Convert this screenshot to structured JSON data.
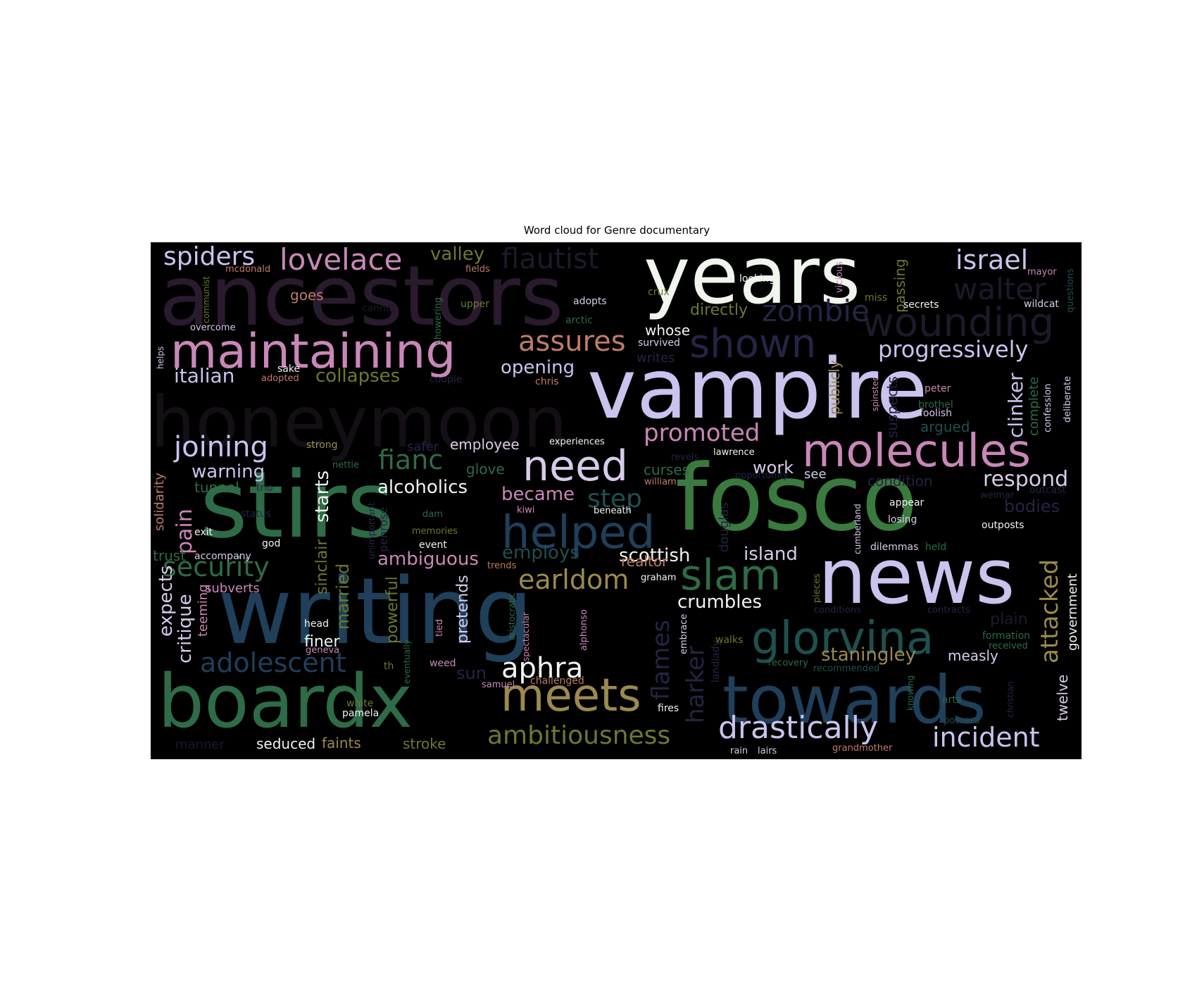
{
  "figure": {
    "title": "Word cloud for Genre documentary"
  },
  "chart_data": {
    "type": "wordcloud",
    "title": "Word cloud for Genre documentary",
    "background": "#000000",
    "palette": [
      "#2a1a2e",
      "#1f3f5a",
      "#2e6b47",
      "#c9c3ee",
      "#c987b8",
      "#f0f5ee",
      "#9c8a4d",
      "#d8cbea",
      "#c07b67",
      "#6b7a2e"
    ],
    "words": [
      {
        "text": "ancestors",
        "color": "#2a1a2e"
      },
      {
        "text": "years",
        "color": "#f0f5ee"
      },
      {
        "text": "vampire",
        "color": "#c9c3ee"
      },
      {
        "text": "honeymoon",
        "color": "#140f14"
      },
      {
        "text": "stirs",
        "color": "#2e6b47"
      },
      {
        "text": "fosco",
        "color": "#3a7a3e"
      },
      {
        "text": "writing",
        "color": "#1f3f5a"
      },
      {
        "text": "news",
        "color": "#c9c3ee"
      },
      {
        "text": "boardx",
        "color": "#2e6b47"
      },
      {
        "text": "towards",
        "color": "#1f3f5a"
      },
      {
        "text": "maintaining",
        "color": "#c987b8"
      },
      {
        "text": "molecules",
        "color": "#c987b8"
      },
      {
        "text": "helped",
        "color": "#1f3f5a"
      },
      {
        "text": "glorvina",
        "color": "#1f5050"
      },
      {
        "text": "need",
        "color": "#d8cbea"
      },
      {
        "text": "meets",
        "color": "#9c8a4d"
      },
      {
        "text": "slam",
        "color": "#2e6b47"
      },
      {
        "text": "shown",
        "color": "#252445"
      },
      {
        "text": "wounding",
        "color": "#1c1a2a"
      },
      {
        "text": "lovelace",
        "color": "#c987b8"
      },
      {
        "text": "spiders",
        "color": "#c9c3ee"
      },
      {
        "text": "israel",
        "color": "#c9c3ee"
      },
      {
        "text": "zombie",
        "color": "#252445"
      },
      {
        "text": "walter",
        "color": "#1c1a2a"
      },
      {
        "text": "flautist",
        "color": "#1c1a2a"
      },
      {
        "text": "assures",
        "color": "#c07b67"
      },
      {
        "text": "progressively",
        "color": "#c9c3ee"
      },
      {
        "text": "promoted",
        "color": "#c987b8"
      },
      {
        "text": "fianc",
        "color": "#2e6b47"
      },
      {
        "text": "joining",
        "color": "#c9c3ee"
      },
      {
        "text": "security",
        "color": "#2e6b47"
      },
      {
        "text": "adolescent",
        "color": "#1f3f5a"
      },
      {
        "text": "ambitiousness",
        "color": "#6b7a2e"
      },
      {
        "text": "drastically",
        "color": "#c9c3ee"
      },
      {
        "text": "incident",
        "color": "#c9c3ee"
      },
      {
        "text": "earldom",
        "color": "#9c8a4d"
      },
      {
        "text": "aphra",
        "color": "#f0f5ee"
      },
      {
        "text": "step",
        "color": "#1f5050"
      },
      {
        "text": "respond",
        "color": "#d8cbea"
      },
      {
        "text": "staningley",
        "color": "#9c8a4d"
      },
      {
        "text": "attacked",
        "color": "#9c8a4d"
      },
      {
        "text": "flames",
        "color": "#252445"
      },
      {
        "text": "harker",
        "color": "#252445"
      },
      {
        "text": "italian",
        "color": "#c9c3ee"
      },
      {
        "text": "collapses",
        "color": "#6b7a2e"
      },
      {
        "text": "opening",
        "color": "#c9c3ee"
      },
      {
        "text": "valley",
        "color": "#6b7a2e"
      },
      {
        "text": "directly",
        "color": "#6b7a2e"
      },
      {
        "text": "alcoholics",
        "color": "#f0f5ee"
      },
      {
        "text": "warning",
        "color": "#c9c3ee"
      },
      {
        "text": "scottish",
        "color": "#f0f5ee"
      },
      {
        "text": "island",
        "color": "#d8cbea"
      },
      {
        "text": "crumbles",
        "color": "#f0f5ee"
      },
      {
        "text": "ambiguous",
        "color": "#c987b8"
      },
      {
        "text": "employs",
        "color": "#1f5050"
      },
      {
        "text": "became",
        "color": "#c987b8"
      },
      {
        "text": "work",
        "color": "#d8cbea"
      },
      {
        "text": "clinker",
        "color": "#c9c3ee"
      },
      {
        "text": "pain",
        "color": "#c987b8"
      },
      {
        "text": "starts",
        "color": "#f0f5ee"
      },
      {
        "text": "expects",
        "color": "#d8cbea"
      },
      {
        "text": "critique",
        "color": "#d8cbea"
      },
      {
        "text": "married",
        "color": "#6b7a2e"
      },
      {
        "text": "sinclair",
        "color": "#6b7a2e"
      },
      {
        "text": "pretends",
        "color": "#d8cbea"
      },
      {
        "text": "powerful",
        "color": "#6b7a2e"
      },
      {
        "text": "finer",
        "color": "#f0f5ee"
      },
      {
        "text": "sun",
        "color": "#252445"
      },
      {
        "text": "measly",
        "color": "#d8cbea"
      },
      {
        "text": "bodies",
        "color": "#252445"
      },
      {
        "text": "goes",
        "color": "#c07b67"
      },
      {
        "text": "whose",
        "color": "#f0f5ee"
      },
      {
        "text": "publicly",
        "color": "#9c8a4d"
      },
      {
        "text": "suspects",
        "color": "#252445"
      },
      {
        "text": "passing",
        "color": "#6b7a2e"
      },
      {
        "text": "argued",
        "color": "#1f5050"
      },
      {
        "text": "government",
        "color": "#f0f5ee"
      },
      {
        "text": "twelve",
        "color": "#d8cbea"
      },
      {
        "text": "seduced",
        "color": "#f0f5ee"
      },
      {
        "text": "faints",
        "color": "#9c8a4d"
      },
      {
        "text": "stroke",
        "color": "#6b7a2e"
      },
      {
        "text": "employee",
        "color": "#d8cbea"
      },
      {
        "text": "subverts",
        "color": "#c987b8"
      },
      {
        "text": "teeming",
        "color": "#c987b8"
      },
      {
        "text": "tunnel",
        "color": "#2e6b47"
      },
      {
        "text": "trust",
        "color": "#2e6b47"
      },
      {
        "text": "glove",
        "color": "#2e6b47"
      },
      {
        "text": "curses",
        "color": "#2e6b47"
      },
      {
        "text": "realtor",
        "color": "#c07b67"
      },
      {
        "text": "condition",
        "color": "#252445"
      },
      {
        "text": "solidarity",
        "color": "#c07b67"
      },
      {
        "text": "complete",
        "color": "#2e6b47"
      },
      {
        "text": "plain",
        "color": "#1c1a2a"
      },
      {
        "text": "manner",
        "color": "#1c1a2a"
      },
      {
        "text": "mcdonald",
        "color": "#c07b67"
      },
      {
        "text": "fields",
        "color": "#c07b67"
      },
      {
        "text": "mayor",
        "color": "#c987b8"
      },
      {
        "text": "communist",
        "color": "#6b7a2e"
      },
      {
        "text": "cannot",
        "color": "#1c1a2a"
      },
      {
        "text": "upper",
        "color": "#6b7a2e"
      },
      {
        "text": "adopts",
        "color": "#d8cbea"
      },
      {
        "text": "crux",
        "color": "#6b7a2e"
      },
      {
        "text": "looking",
        "color": "#f0f5ee"
      },
      {
        "text": "vicious",
        "color": "#c987b8"
      },
      {
        "text": "miss",
        "color": "#6b7a2e"
      },
      {
        "text": "secrets",
        "color": "#f0f5ee"
      },
      {
        "text": "wildcat",
        "color": "#d8cbea"
      },
      {
        "text": "questions",
        "color": "#1f5050"
      },
      {
        "text": "overcome",
        "color": "#d8cbea"
      },
      {
        "text": "arctic",
        "color": "#2e6b47"
      },
      {
        "text": "showering",
        "color": "#2e6b47"
      },
      {
        "text": "survived",
        "color": "#d8cbea"
      },
      {
        "text": "writes",
        "color": "#252445"
      },
      {
        "text": "sake",
        "color": "#f0f5ee"
      },
      {
        "text": "adopted",
        "color": "#c07b67"
      },
      {
        "text": "couple",
        "color": "#252445"
      },
      {
        "text": "chris",
        "color": "#c07b67"
      },
      {
        "text": "helps",
        "color": "#d8cbea"
      },
      {
        "text": "spinster",
        "color": "#c987b8"
      },
      {
        "text": "brothel",
        "color": "#2e6b47"
      },
      {
        "text": "peter",
        "color": "#c987b8"
      },
      {
        "text": "foolish",
        "color": "#d8cbea"
      },
      {
        "text": "confession",
        "color": "#d8cbea"
      },
      {
        "text": "deliberate",
        "color": "#d8cbea"
      },
      {
        "text": "strong",
        "color": "#9c8a4d"
      },
      {
        "text": "nettie",
        "color": "#2e6b47"
      },
      {
        "text": "safer",
        "color": "#252445"
      },
      {
        "text": "experiences",
        "color": "#f0f5ee"
      },
      {
        "text": "lawrence",
        "color": "#f0f5ee"
      },
      {
        "text": "revels",
        "color": "#252445"
      },
      {
        "text": "william",
        "color": "#c07b67"
      },
      {
        "text": "opportunity",
        "color": "#252445"
      },
      {
        "text": "see",
        "color": "#d8cbea"
      },
      {
        "text": "weimar",
        "color": "#252445"
      },
      {
        "text": "outcast",
        "color": "#252445"
      },
      {
        "text": "trio",
        "color": "#252445"
      },
      {
        "text": "status",
        "color": "#252445"
      },
      {
        "text": "dam",
        "color": "#2e6b47"
      },
      {
        "text": "kiwi",
        "color": "#c987b8"
      },
      {
        "text": "beneath",
        "color": "#f0f5ee"
      },
      {
        "text": "appear",
        "color": "#f0f5ee"
      },
      {
        "text": "losing",
        "color": "#d8cbea"
      },
      {
        "text": "outposts",
        "color": "#f0f5ee"
      },
      {
        "text": "memories",
        "color": "#6b7a2e"
      },
      {
        "text": "exit",
        "color": "#f0f5ee"
      },
      {
        "text": "god",
        "color": "#f0f5ee"
      },
      {
        "text": "event",
        "color": "#f0f5ee"
      },
      {
        "text": "accompany",
        "color": "#d8cbea"
      },
      {
        "text": "trends",
        "color": "#c07b67"
      },
      {
        "text": "graham",
        "color": "#f0f5ee"
      },
      {
        "text": "dilemmas",
        "color": "#d8cbea"
      },
      {
        "text": "held",
        "color": "#2e6b47"
      },
      {
        "text": "cumberland",
        "color": "#d8cbea"
      },
      {
        "text": "douglas",
        "color": "#252445"
      },
      {
        "text": "penrose",
        "color": "#252445"
      },
      {
        "text": "unimportant",
        "color": "#252445"
      },
      {
        "text": "head",
        "color": "#f0f5ee"
      },
      {
        "text": "geneva",
        "color": "#c987b8"
      },
      {
        "text": "tied",
        "color": "#c987b8"
      },
      {
        "text": "aristocratic",
        "color": "#2e6b47"
      },
      {
        "text": "spectacular",
        "color": "#c987b8"
      },
      {
        "text": "alphonso",
        "color": "#c987b8"
      },
      {
        "text": "embrace",
        "color": "#d8cbea"
      },
      {
        "text": "walks",
        "color": "#6b7a2e"
      },
      {
        "text": "pieces",
        "color": "#6b7a2e"
      },
      {
        "text": "conditions",
        "color": "#252445"
      },
      {
        "text": "contracts",
        "color": "#252445"
      },
      {
        "text": "formation",
        "color": "#2e6b47"
      },
      {
        "text": "received",
        "color": "#2e6b47"
      },
      {
        "text": "recovery",
        "color": "#2e6b47"
      },
      {
        "text": "recommended",
        "color": "#1f5050"
      },
      {
        "text": "landlady",
        "color": "#252445"
      },
      {
        "text": "eventually",
        "color": "#2e6b47"
      },
      {
        "text": "th",
        "color": "#6b7a2e"
      },
      {
        "text": "weed",
        "color": "#c987b8"
      },
      {
        "text": "samuel",
        "color": "#c987b8"
      },
      {
        "text": "challenged",
        "color": "#c07b67"
      },
      {
        "text": "white",
        "color": "#6b7a2e"
      },
      {
        "text": "pamela",
        "color": "#f0f5ee"
      },
      {
        "text": "fires",
        "color": "#f0f5ee"
      },
      {
        "text": "arts",
        "color": "#2e6b47"
      },
      {
        "text": "possess",
        "color": "#1f5050"
      },
      {
        "text": "knowing",
        "color": "#2e6b47"
      },
      {
        "text": "christian",
        "color": "#252445"
      },
      {
        "text": "rain",
        "color": "#d8cbea"
      },
      {
        "text": "lairs",
        "color": "#d8cbea"
      },
      {
        "text": "grandmother",
        "color": "#c07b67"
      }
    ]
  }
}
